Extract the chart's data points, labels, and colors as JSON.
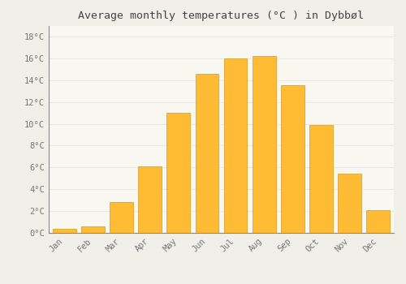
{
  "title": "Average monthly temperatures (°C ) in Dybbøl",
  "months": [
    "Jan",
    "Feb",
    "Mar",
    "Apr",
    "May",
    "Jun",
    "Jul",
    "Aug",
    "Sep",
    "Oct",
    "Nov",
    "Dec"
  ],
  "values": [
    0.4,
    0.6,
    2.8,
    6.1,
    11.0,
    14.6,
    16.0,
    16.2,
    13.5,
    9.9,
    5.4,
    2.1
  ],
  "bar_color": "#FFBB33",
  "background_color": "#F0F0E8",
  "plot_bg_color": "#F8F8F0",
  "grid_color": "#E8E8E8",
  "spine_color": "#888888",
  "text_color": "#777777",
  "ytick_values": [
    0,
    2,
    4,
    6,
    8,
    10,
    12,
    14,
    16,
    18
  ],
  "ylim": [
    0,
    19.0
  ],
  "title_fontsize": 9.5,
  "tick_fontsize": 7.5,
  "bar_width": 0.82
}
